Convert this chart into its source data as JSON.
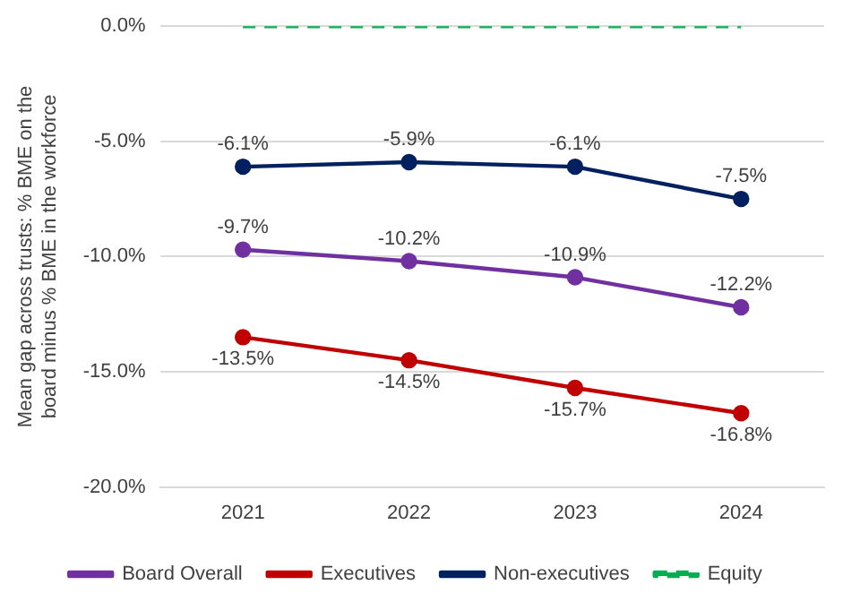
{
  "chart_data": {
    "type": "line",
    "ylabel": "Mean gap across trusts: % BME on the board minus % BME in the workforce",
    "categories": [
      "2021",
      "2022",
      "2023",
      "2024"
    ],
    "series": [
      {
        "name": "Board Overall",
        "color": "#7030a0",
        "values": [
          -9.7,
          -10.2,
          -10.9,
          -12.2
        ],
        "value_labels": [
          "-9.7%",
          "-10.2%",
          "-10.9%",
          "-12.2%"
        ]
      },
      {
        "name": "Executives",
        "color": "#c00000",
        "values": [
          -13.5,
          -14.5,
          -15.7,
          -16.8
        ],
        "value_labels": [
          "-13.5%",
          "-14.5%",
          "-15.7%",
          "-16.8%"
        ]
      },
      {
        "name": "Non-executives",
        "color": "#002060",
        "values": [
          -6.1,
          -5.9,
          -6.1,
          -7.5
        ],
        "value_labels": [
          "-6.1%",
          "-5.9%",
          "-6.1%",
          "-7.5%"
        ]
      },
      {
        "name": "Equity",
        "color": "#00b050",
        "values": [
          0,
          0,
          0,
          0
        ],
        "marker": "none",
        "line_style": "dashed"
      }
    ],
    "ylim": [
      -20,
      0
    ],
    "yticks": [
      {
        "value": -20,
        "label": "-20.0%"
      },
      {
        "value": -15,
        "label": "-15.0%"
      },
      {
        "value": -10,
        "label": "-10.0%"
      },
      {
        "value": -5,
        "label": "-5.0%"
      },
      {
        "value": 0,
        "label": "0.0%"
      }
    ],
    "grid": "y",
    "legend": "bottom",
    "marker": "circle",
    "line_style": "solid"
  }
}
